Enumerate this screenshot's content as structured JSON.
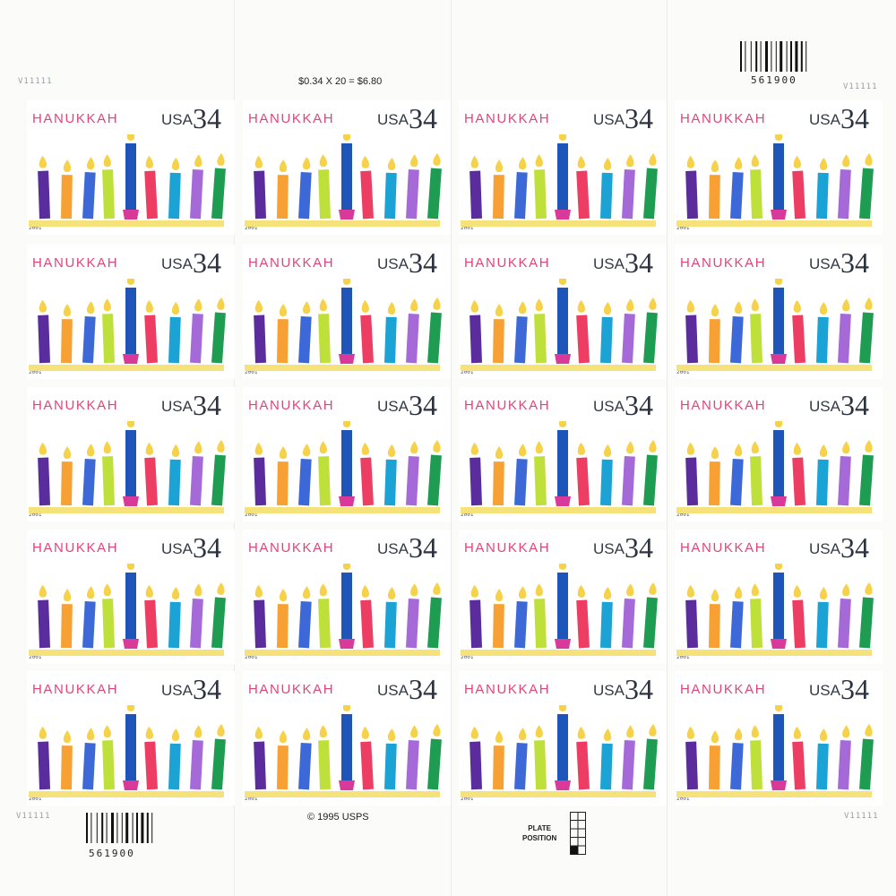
{
  "sheet": {
    "price_line": "$0.34 X 20 = $6.80",
    "copyright": "© 1995 USPS",
    "plate_position_label": "PLATE\nPOSITION",
    "plate_number": "V11111",
    "barcode_number": "561900"
  },
  "stamp": {
    "title": "HANUKKAH",
    "country": "USA",
    "denomination": "34",
    "year": "2001"
  },
  "colors": {
    "title_pink": "#e0457a",
    "candles": [
      "#5b2d9c",
      "#f7a135",
      "#3d68d8",
      "#bfe03a",
      "#1f55b8",
      "#ee3d63",
      "#1aa3d4",
      "#a56ad8",
      "#1e9c52"
    ],
    "flame": "#f5d24a",
    "shamash_base": "#d93a9a",
    "base_bar": "#f6e27a"
  },
  "candles": [
    {
      "name": "candle-1",
      "height": 0.72,
      "tilt": -2
    },
    {
      "name": "candle-2",
      "height": 0.66,
      "tilt": 1
    },
    {
      "name": "candle-3",
      "height": 0.7,
      "tilt": 3
    },
    {
      "name": "candle-4",
      "height": 0.74,
      "tilt": -2
    },
    {
      "name": "candle-shamash",
      "height": 1.0,
      "tilt": 0
    },
    {
      "name": "candle-6",
      "height": 0.72,
      "tilt": -3
    },
    {
      "name": "candle-7",
      "height": 0.69,
      "tilt": 2
    },
    {
      "name": "candle-8",
      "height": 0.74,
      "tilt": 3
    },
    {
      "name": "candle-9",
      "height": 0.76,
      "tilt": 4
    }
  ]
}
